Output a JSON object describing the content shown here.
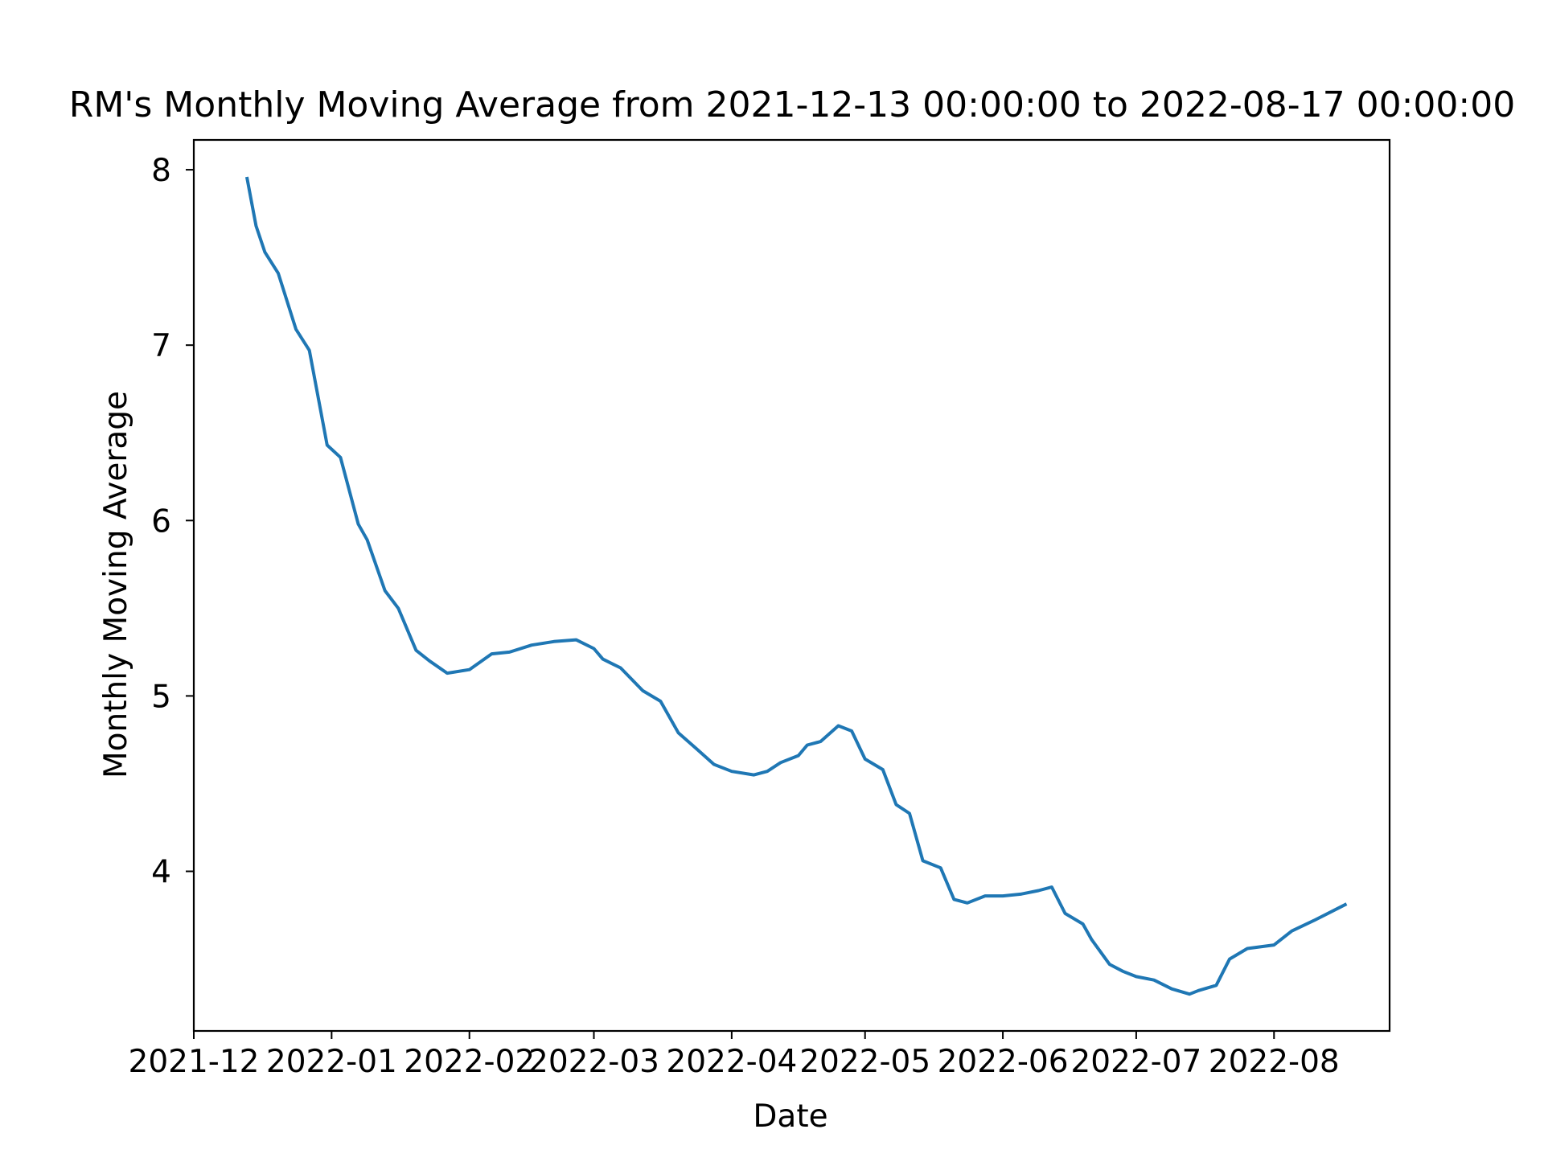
{
  "chart_data": {
    "type": "line",
    "title": "RM's Monthly Moving Average from 2021-12-13 00:00:00 to 2022-08-17 00:00:00",
    "xlabel": "Date",
    "ylabel": "Monthly Moving Average",
    "xlim": [
      "2021-12-01",
      "2022-08-27"
    ],
    "ylim": [
      3.09,
      8.17
    ],
    "x_ticks": [
      {
        "date": "2021-12-01",
        "label": "2021-12"
      },
      {
        "date": "2022-01-01",
        "label": "2022-01"
      },
      {
        "date": "2022-02-01",
        "label": "2022-02"
      },
      {
        "date": "2022-03-01",
        "label": "2022-03"
      },
      {
        "date": "2022-04-01",
        "label": "2022-04"
      },
      {
        "date": "2022-05-01",
        "label": "2022-05"
      },
      {
        "date": "2022-06-01",
        "label": "2022-06"
      },
      {
        "date": "2022-07-01",
        "label": "2022-07"
      },
      {
        "date": "2022-08-01",
        "label": "2022-08"
      }
    ],
    "y_ticks": [
      {
        "value": 4,
        "label": "4"
      },
      {
        "value": 5,
        "label": "5"
      },
      {
        "value": 6,
        "label": "6"
      },
      {
        "value": 7,
        "label": "7"
      },
      {
        "value": 8,
        "label": "8"
      }
    ],
    "grid": false,
    "series": [
      {
        "color": "#1f77b4",
        "x": [
          "2021-12-13",
          "2021-12-15",
          "2021-12-17",
          "2021-12-20",
          "2021-12-24",
          "2021-12-27",
          "2021-12-31",
          "2022-01-03",
          "2022-01-07",
          "2022-01-09",
          "2022-01-13",
          "2022-01-16",
          "2022-01-20",
          "2022-01-23",
          "2022-01-27",
          "2022-02-01",
          "2022-02-06",
          "2022-02-10",
          "2022-02-15",
          "2022-02-20",
          "2022-02-25",
          "2022-03-01",
          "2022-03-03",
          "2022-03-07",
          "2022-03-12",
          "2022-03-16",
          "2022-03-20",
          "2022-03-24",
          "2022-03-28",
          "2022-04-01",
          "2022-04-06",
          "2022-04-09",
          "2022-04-12",
          "2022-04-16",
          "2022-04-18",
          "2022-04-21",
          "2022-04-25",
          "2022-04-28",
          "2022-05-01",
          "2022-05-05",
          "2022-05-08",
          "2022-05-11",
          "2022-05-14",
          "2022-05-18",
          "2022-05-21",
          "2022-05-24",
          "2022-05-28",
          "2022-06-01",
          "2022-06-05",
          "2022-06-09",
          "2022-06-12",
          "2022-06-15",
          "2022-06-19",
          "2022-06-21",
          "2022-06-25",
          "2022-06-28",
          "2022-07-01",
          "2022-07-05",
          "2022-07-09",
          "2022-07-13",
          "2022-07-15",
          "2022-07-19",
          "2022-07-22",
          "2022-07-26",
          "2022-08-01",
          "2022-08-05",
          "2022-08-10",
          "2022-08-17"
        ],
        "y": [
          7.95,
          7.68,
          7.53,
          7.41,
          7.09,
          6.97,
          6.43,
          6.36,
          5.98,
          5.89,
          5.6,
          5.5,
          5.26,
          5.2,
          5.13,
          5.15,
          5.24,
          5.25,
          5.29,
          5.31,
          5.32,
          5.27,
          5.21,
          5.16,
          5.03,
          4.97,
          4.79,
          4.7,
          4.61,
          4.57,
          4.55,
          4.57,
          4.62,
          4.66,
          4.72,
          4.74,
          4.83,
          4.8,
          4.64,
          4.58,
          4.38,
          4.33,
          4.06,
          4.02,
          3.84,
          3.82,
          3.86,
          3.86,
          3.87,
          3.89,
          3.91,
          3.76,
          3.7,
          3.61,
          3.47,
          3.43,
          3.4,
          3.38,
          3.33,
          3.3,
          3.32,
          3.35,
          3.5,
          3.56,
          3.58,
          3.66,
          3.72,
          3.81
        ]
      }
    ]
  }
}
